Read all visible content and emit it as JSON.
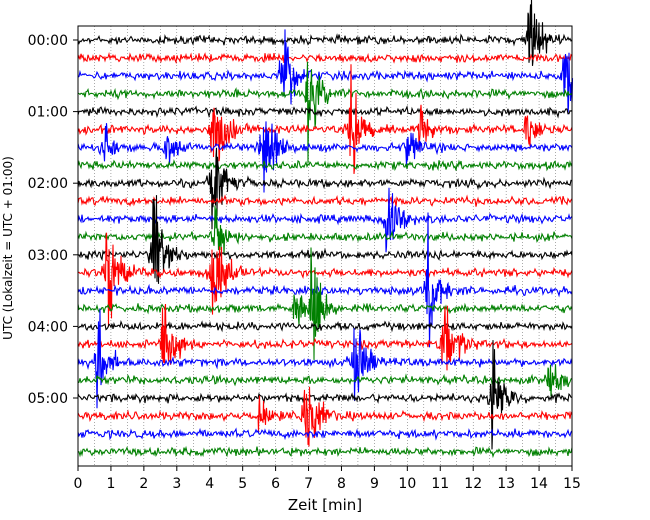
{
  "chart_data": {
    "type": "line",
    "title": "",
    "xlabel": "Zeit  [min]",
    "ylabel": "UTC (Lokalzeit = UTC + 01:00)",
    "xlim": [
      0,
      15
    ],
    "x_ticks": [
      0,
      1,
      2,
      3,
      4,
      5,
      6,
      7,
      8,
      9,
      10,
      11,
      12,
      13,
      14,
      15
    ],
    "y_tick_labels": [
      "00:00",
      "01:00",
      "02:00",
      "03:00",
      "04:00",
      "05:00"
    ],
    "trace_interval_min": 15,
    "trace_count": 24,
    "trace_colors": [
      "#000000",
      "#ff0000",
      "#0000ff",
      "#008000"
    ],
    "grid": "vertical dotted lines every 0.5 min",
    "events": [
      {
        "trace": 0,
        "minute": 13.7,
        "amp": 2.2
      },
      {
        "trace": 2,
        "minute": 6.2,
        "amp": 2.5
      },
      {
        "trace": 2,
        "minute": 14.8,
        "amp": 2.5
      },
      {
        "trace": 3,
        "minute": 7.0,
        "amp": 2.5
      },
      {
        "trace": 5,
        "minute": 4.1,
        "amp": 3.0
      },
      {
        "trace": 5,
        "minute": 8.3,
        "amp": 2.5
      },
      {
        "trace": 5,
        "minute": 10.4,
        "amp": 0.9
      },
      {
        "trace": 5,
        "minute": 13.6,
        "amp": 0.9
      },
      {
        "trace": 6,
        "minute": 0.8,
        "amp": 0.9
      },
      {
        "trace": 6,
        "minute": 2.7,
        "amp": 0.9
      },
      {
        "trace": 6,
        "minute": 5.6,
        "amp": 3.0
      },
      {
        "trace": 6,
        "minute": 10.0,
        "amp": 0.9
      },
      {
        "trace": 8,
        "minute": 4.1,
        "amp": 2.8
      },
      {
        "trace": 10,
        "minute": 9.4,
        "amp": 2.0
      },
      {
        "trace": 11,
        "minute": 4.2,
        "amp": 1.2
      },
      {
        "trace": 12,
        "minute": 2.3,
        "amp": 3.0
      },
      {
        "trace": 13,
        "minute": 0.9,
        "amp": 3.0
      },
      {
        "trace": 13,
        "minute": 4.1,
        "amp": 3.0
      },
      {
        "trace": 14,
        "minute": 10.6,
        "amp": 2.5
      },
      {
        "trace": 15,
        "minute": 7.1,
        "amp": 2.2
      },
      {
        "trace": 15,
        "minute": 6.6,
        "amp": 0.8
      },
      {
        "trace": 17,
        "minute": 2.6,
        "amp": 2.5
      },
      {
        "trace": 17,
        "minute": 11.1,
        "amp": 2.5
      },
      {
        "trace": 18,
        "minute": 0.6,
        "amp": 2.0
      },
      {
        "trace": 18,
        "minute": 8.4,
        "amp": 2.2
      },
      {
        "trace": 19,
        "minute": 14.3,
        "amp": 0.9
      },
      {
        "trace": 20,
        "minute": 12.6,
        "amp": 2.5
      },
      {
        "trace": 21,
        "minute": 6.9,
        "amp": 2.8
      },
      {
        "trace": 21,
        "minute": 5.5,
        "amp": 0.8
      }
    ]
  }
}
